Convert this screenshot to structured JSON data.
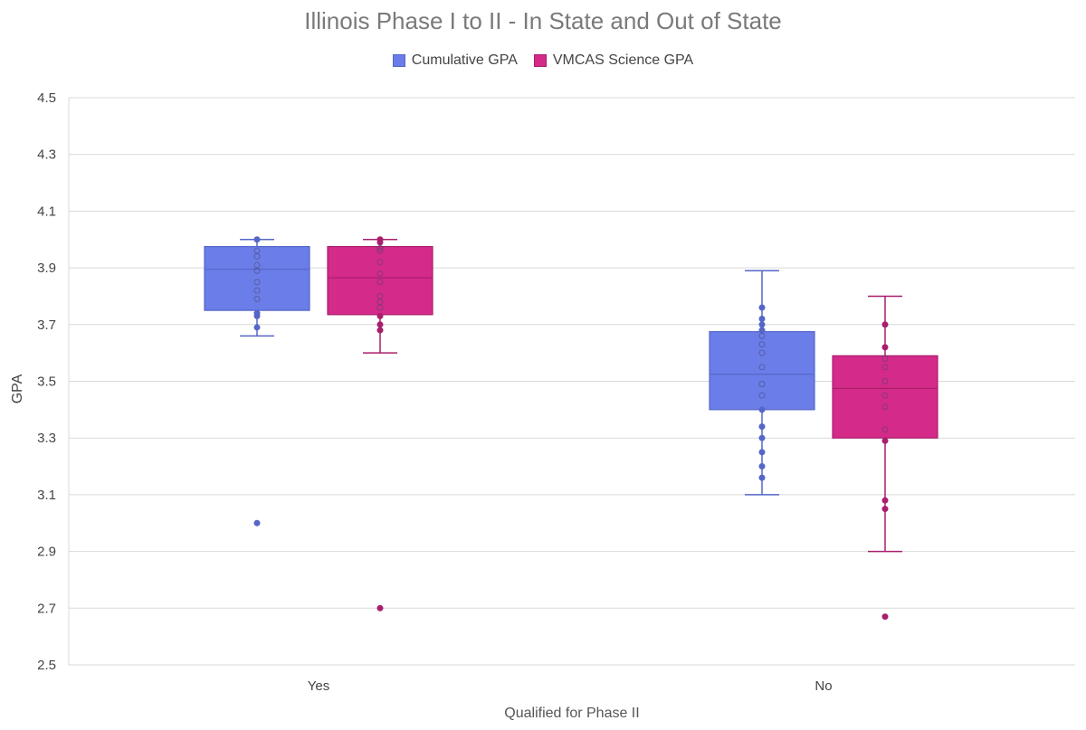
{
  "chart_data": {
    "type": "box",
    "title": "Illinois Phase I to II - In State and Out of State",
    "xlabel": "Qualified for Phase II",
    "ylabel": "GPA",
    "ylim": [
      2.5,
      4.5
    ],
    "yticks": [
      "2.5",
      "2.7",
      "2.9",
      "3.1",
      "3.3",
      "3.5",
      "3.7",
      "3.9",
      "4.1",
      "4.3",
      "4.5"
    ],
    "grid": true,
    "legend_position": "top-center",
    "categories": [
      "Yes",
      "No"
    ],
    "series": [
      {
        "name": "Cumulative GPA",
        "color": "#6b7de8",
        "stroke": "#5566c7",
        "boxes": [
          {
            "category": "Yes",
            "min": 3.66,
            "q1": 3.75,
            "median": 3.895,
            "q3": 3.975,
            "max": 4.0,
            "points": [
              4.0,
              3.96,
              3.94,
              3.91,
              3.89,
              3.85,
              3.82,
              3.79,
              3.74,
              3.73,
              3.69
            ],
            "outliers": [
              3.0
            ]
          },
          {
            "category": "No",
            "min": 3.1,
            "q1": 3.4,
            "median": 3.525,
            "q3": 3.675,
            "max": 3.89,
            "points": [
              3.76,
              3.72,
              3.7,
              3.68,
              3.66,
              3.63,
              3.6,
              3.55,
              3.49,
              3.45,
              3.4,
              3.34,
              3.3,
              3.25,
              3.2,
              3.16
            ],
            "outliers": []
          }
        ]
      },
      {
        "name": "VMCAS Science GPA",
        "color": "#d42a8a",
        "stroke": "#a81f6c",
        "boxes": [
          {
            "category": "Yes",
            "min": 3.6,
            "q1": 3.735,
            "median": 3.865,
            "q3": 3.975,
            "max": 4.0,
            "points": [
              4.0,
              3.99,
              3.97,
              3.96,
              3.92,
              3.88,
              3.85,
              3.8,
              3.78,
              3.76,
              3.73,
              3.7,
              3.68
            ],
            "outliers": [
              2.7
            ]
          },
          {
            "category": "No",
            "min": 2.9,
            "q1": 3.3,
            "median": 3.475,
            "q3": 3.59,
            "max": 3.8,
            "points": [
              3.7,
              3.62,
              3.58,
              3.55,
              3.5,
              3.45,
              3.41,
              3.33,
              3.29,
              3.08,
              3.05
            ],
            "outliers": [
              2.67
            ]
          }
        ]
      }
    ]
  }
}
